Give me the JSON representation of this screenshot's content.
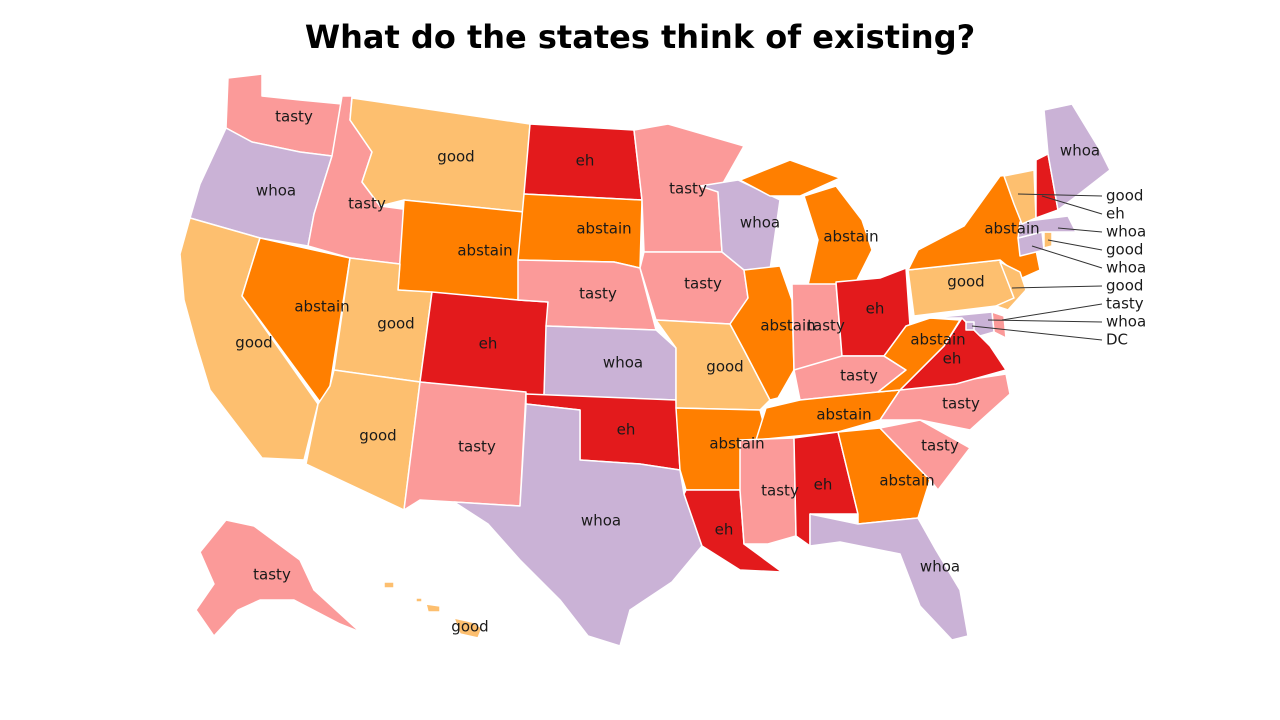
{
  "title": "What do the states think of existing?",
  "colors": {
    "tasty": "#fb9a99",
    "whoa": "#cab2d6",
    "good": "#fdbf6f",
    "abstain": "#ff7f00",
    "eh": "#e31a1c"
  },
  "states": [
    {
      "id": "WA",
      "value": "tasty"
    },
    {
      "id": "OR",
      "value": "whoa"
    },
    {
      "id": "CA",
      "value": "good"
    },
    {
      "id": "ID",
      "value": "tasty"
    },
    {
      "id": "NV",
      "value": "abstain"
    },
    {
      "id": "MT",
      "value": "good"
    },
    {
      "id": "WY",
      "value": "abstain"
    },
    {
      "id": "UT",
      "value": "good"
    },
    {
      "id": "AZ",
      "value": "good"
    },
    {
      "id": "CO",
      "value": "eh"
    },
    {
      "id": "NM",
      "value": "tasty"
    },
    {
      "id": "ND",
      "value": "eh"
    },
    {
      "id": "SD",
      "value": "abstain"
    },
    {
      "id": "NE",
      "value": "tasty"
    },
    {
      "id": "KS",
      "value": "whoa"
    },
    {
      "id": "OK",
      "value": "eh"
    },
    {
      "id": "TX",
      "value": "whoa"
    },
    {
      "id": "MN",
      "value": "tasty"
    },
    {
      "id": "IA",
      "value": "tasty"
    },
    {
      "id": "MO",
      "value": "good"
    },
    {
      "id": "AR",
      "value": "abstain"
    },
    {
      "id": "LA",
      "value": "eh"
    },
    {
      "id": "WI",
      "value": "whoa"
    },
    {
      "id": "IL",
      "value": "abstain"
    },
    {
      "id": "MI",
      "value": "abstain"
    },
    {
      "id": "IN",
      "value": "tasty"
    },
    {
      "id": "OH",
      "value": "eh"
    },
    {
      "id": "KY",
      "value": "tasty"
    },
    {
      "id": "TN",
      "value": "abstain"
    },
    {
      "id": "MS",
      "value": "tasty"
    },
    {
      "id": "AL",
      "value": "eh"
    },
    {
      "id": "GA",
      "value": "abstain"
    },
    {
      "id": "FL",
      "value": "whoa"
    },
    {
      "id": "SC",
      "value": "tasty"
    },
    {
      "id": "NC",
      "value": "tasty"
    },
    {
      "id": "VA",
      "value": "eh"
    },
    {
      "id": "WV",
      "value": "abstain"
    },
    {
      "id": "PA",
      "value": "good"
    },
    {
      "id": "NY",
      "value": "abstain"
    },
    {
      "id": "NJ",
      "value": "good"
    },
    {
      "id": "DE",
      "value": "tasty"
    },
    {
      "id": "MD",
      "value": "whoa"
    },
    {
      "id": "DC",
      "value": "DC"
    },
    {
      "id": "CT",
      "value": "whoa"
    },
    {
      "id": "RI",
      "value": "good"
    },
    {
      "id": "MA",
      "value": "whoa"
    },
    {
      "id": "VT",
      "value": "good"
    },
    {
      "id": "NH",
      "value": "eh"
    },
    {
      "id": "ME",
      "value": "whoa"
    },
    {
      "id": "AK",
      "value": "tasty"
    },
    {
      "id": "HI",
      "value": "good"
    }
  ]
}
